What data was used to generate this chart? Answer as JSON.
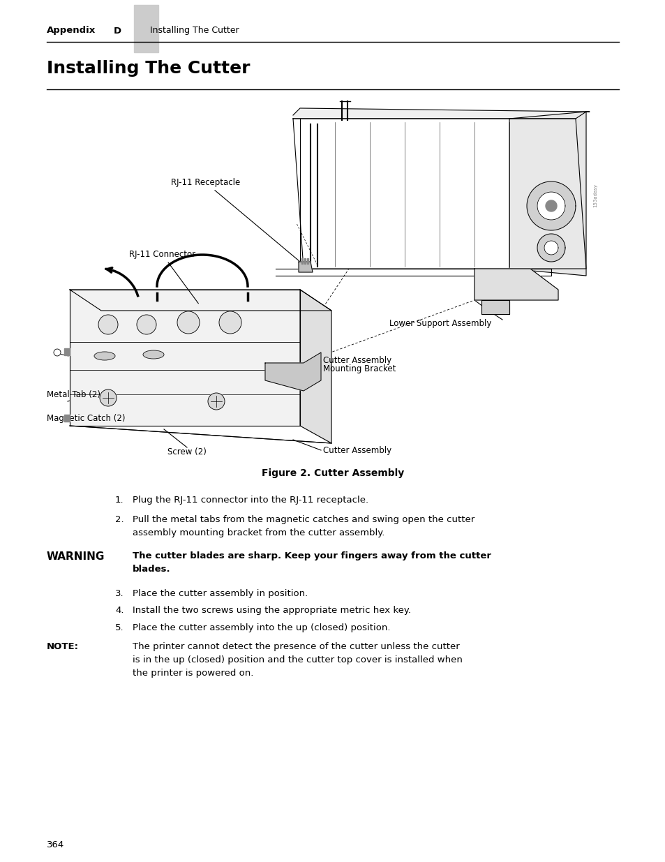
{
  "page_bg": "#ffffff",
  "header_tab_color": "#cccccc",
  "header_text_bold": "Appendix",
  "header_letter": "D",
  "header_text_normal": "Installing The Cutter",
  "title": "Installing The Cutter",
  "figure_caption": "Figure 2. Cutter Assembly",
  "step1": "Plug the RJ-11 connector into the RJ-11 receptacle.",
  "step2_line1": "Pull the metal tabs from the magnetic catches and swing open the cutter",
  "step2_line2": "assembly mounting bracket from the cutter assembly.",
  "warning_label": "WARNING",
  "warning_line1": "The cutter blades are sharp. Keep your fingers away from the cutter",
  "warning_line2": "blades.",
  "step3": "Place the cutter assembly in position.",
  "step4": "Install the two screws using the appropriate metric hex key.",
  "step5": "Place the cutter assembly into the up (closed) position.",
  "note_label": "NOTE:",
  "note_line1": "The printer cannot detect the presence of the cutter unless the cutter",
  "note_line2": "is in the up (closed) position and the cutter top cover is installed when",
  "note_line3": "the printer is powered on.",
  "page_number": "364",
  "label_rj11_receptacle": "RJ-11 Receptacle",
  "label_rj11_connector": "RJ-11 Connector",
  "label_lower_support": "Lower Support Assembly",
  "label_cutter_bracket_1": "Cutter Assembly",
  "label_cutter_bracket_2": "Mounting Bracket",
  "label_metal_tab": "Metal Tab (2)",
  "label_magnetic_catch": "Magnetic Catch (2)",
  "label_screw": "Screw (2)",
  "label_cutter_assembly": "Cutter Assembly"
}
